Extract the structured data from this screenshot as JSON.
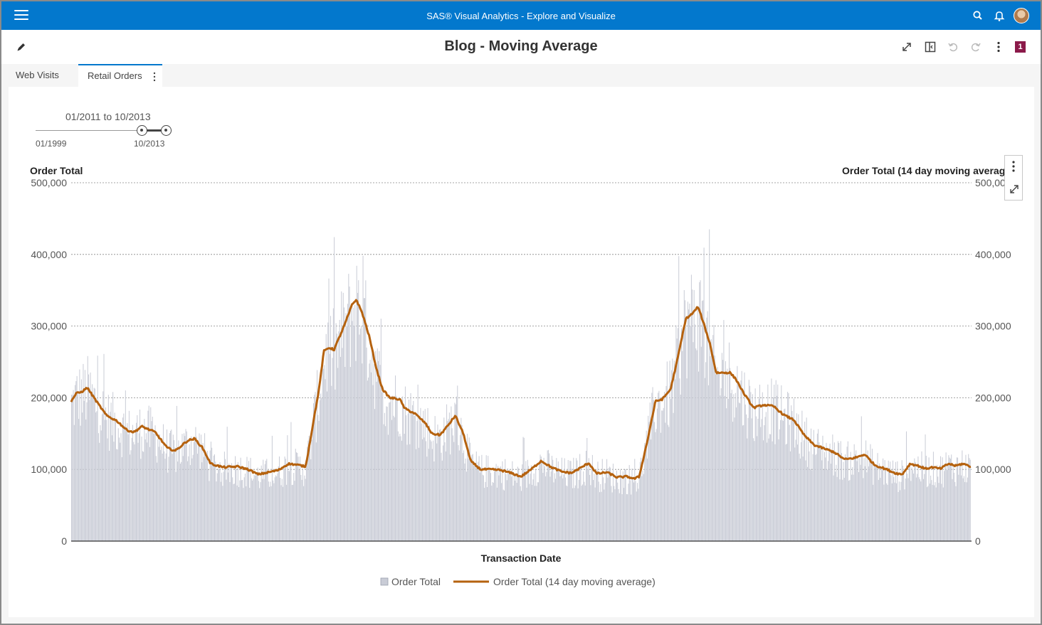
{
  "app": {
    "title": "SAS® Visual Analytics - Explore and Visualize"
  },
  "report": {
    "title": "Blog - Moving Average",
    "badge_count": "1"
  },
  "tabs": [
    {
      "label": "Web Visits",
      "active": false
    },
    {
      "label": "Retail Orders",
      "active": true
    }
  ],
  "date_slider": {
    "range_label": "01/2011 to 10/2013",
    "min_label": "01/1999",
    "max_label": "10/2013"
  },
  "colors": {
    "header": "#0378cd",
    "bars": "#c9ccd6",
    "line": "#b5620f",
    "badge": "#8b1a4a"
  },
  "chart_data": {
    "type": "bar-line",
    "y_left_title": "Order Total",
    "y_right_title": "Order Total (14 day moving average)",
    "x_title": "Transaction Date",
    "ylim": [
      0,
      500000
    ],
    "y_ticks": [
      0,
      100000,
      200000,
      300000,
      400000,
      500000
    ],
    "y_tick_labels": [
      "0",
      "100,000",
      "200,000",
      "300,000",
      "400,000",
      "500,000"
    ],
    "grid": true,
    "legend": {
      "placement": "bottom",
      "items": [
        "Order Total",
        "Order Total (14 day moving average)"
      ]
    },
    "x_range": [
      "2011-01",
      "2013-10"
    ],
    "moving_average_keypoints": [
      [
        0,
        195000
      ],
      [
        0.5,
        206000
      ],
      [
        1,
        208000
      ],
      [
        1.6,
        214000
      ],
      [
        2.5,
        195000
      ],
      [
        3.5,
        175000
      ],
      [
        4.5,
        168000
      ],
      [
        5.5,
        155000
      ],
      [
        6.2,
        152000
      ],
      [
        7,
        160000
      ],
      [
        7.8,
        155000
      ],
      [
        8.3,
        152000
      ],
      [
        9.5,
        130000
      ],
      [
        10.3,
        126000
      ],
      [
        11.5,
        140000
      ],
      [
        12.2,
        143000
      ],
      [
        13,
        130000
      ],
      [
        13.8,
        108000
      ],
      [
        15,
        103000
      ],
      [
        16.5,
        104000
      ],
      [
        17.5,
        100000
      ],
      [
        18.5,
        93000
      ],
      [
        19.5,
        96000
      ],
      [
        20.5,
        99000
      ],
      [
        21.5,
        108000
      ],
      [
        22.5,
        106000
      ],
      [
        23.2,
        104000
      ],
      [
        24,
        170000
      ],
      [
        24.5,
        210000
      ],
      [
        25,
        265000
      ],
      [
        25.5,
        270000
      ],
      [
        26,
        267000
      ],
      [
        27,
        300000
      ],
      [
        27.8,
        330000
      ],
      [
        28.2,
        337000
      ],
      [
        28.8,
        318000
      ],
      [
        29.5,
        285000
      ],
      [
        30.2,
        240000
      ],
      [
        30.8,
        212000
      ],
      [
        31.5,
        200000
      ],
      [
        32.5,
        198000
      ],
      [
        33,
        185000
      ],
      [
        34,
        178000
      ],
      [
        35,
        165000
      ],
      [
        35.7,
        150000
      ],
      [
        36.5,
        148000
      ],
      [
        37.2,
        160000
      ],
      [
        38,
        175000
      ],
      [
        38.8,
        150000
      ],
      [
        39.5,
        112000
      ],
      [
        40.5,
        100000
      ],
      [
        41.5,
        100000
      ],
      [
        42.5,
        99000
      ],
      [
        43.5,
        95000
      ],
      [
        44.5,
        90000
      ],
      [
        45.5,
        100000
      ],
      [
        46.5,
        112000
      ],
      [
        47.5,
        103000
      ],
      [
        48.5,
        97000
      ],
      [
        49.5,
        95000
      ],
      [
        50.5,
        103000
      ],
      [
        51.2,
        109000
      ],
      [
        52,
        94000
      ],
      [
        53,
        96000
      ],
      [
        54,
        89000
      ],
      [
        55,
        90000
      ],
      [
        55.7,
        87000
      ],
      [
        56.2,
        90000
      ],
      [
        57,
        140000
      ],
      [
        57.8,
        195000
      ],
      [
        58.5,
        198000
      ],
      [
        59.3,
        212000
      ],
      [
        60,
        255000
      ],
      [
        60.8,
        310000
      ],
      [
        61.5,
        318000
      ],
      [
        62,
        327000
      ],
      [
        62.5,
        307000
      ],
      [
        63.2,
        275000
      ],
      [
        63.8,
        235000
      ],
      [
        64.5,
        235000
      ],
      [
        65.2,
        235000
      ],
      [
        65.8,
        225000
      ],
      [
        66.5,
        207000
      ],
      [
        67.5,
        186000
      ],
      [
        68.5,
        190000
      ],
      [
        69.5,
        188000
      ],
      [
        70.5,
        176000
      ],
      [
        71.5,
        169000
      ],
      [
        72.5,
        148000
      ],
      [
        73.5,
        134000
      ],
      [
        74.5,
        129000
      ],
      [
        75.5,
        124000
      ],
      [
        76.5,
        114000
      ],
      [
        77.5,
        116000
      ],
      [
        78.5,
        121000
      ],
      [
        79.5,
        106000
      ],
      [
        80.5,
        101000
      ],
      [
        81.5,
        95000
      ],
      [
        82.2,
        93000
      ],
      [
        83,
        108000
      ],
      [
        83.8,
        105000
      ],
      [
        84.5,
        101000
      ],
      [
        85.2,
        103000
      ],
      [
        86,
        101000
      ],
      [
        86.8,
        108000
      ],
      [
        87.5,
        105000
      ],
      [
        88.2,
        108000
      ],
      [
        89,
        104000
      ]
    ],
    "bar_samples_note": "Daily Order Total bars follow the moving average with random daily variation."
  }
}
